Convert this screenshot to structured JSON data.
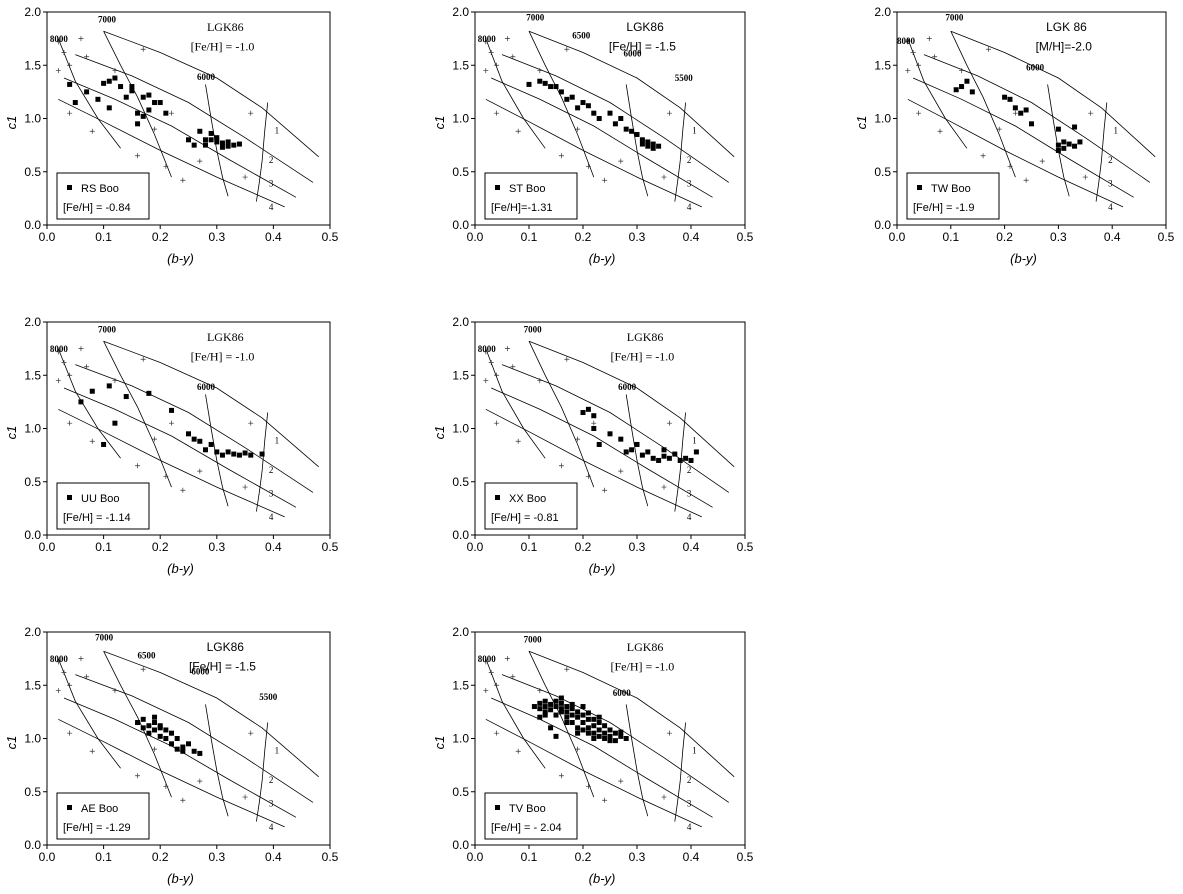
{
  "chart_data": [
    {
      "type": "scatter",
      "panel": "RS Boo",
      "xlabel": "(b-y)",
      "ylabel": "c1",
      "xlim": [
        0,
        0.5
      ],
      "ylim": [
        0,
        2
      ],
      "xticks": [
        "0.0",
        "0.1",
        "0.2",
        "0.3",
        "0.4",
        "0.5"
      ],
      "yticks": [
        "0.0",
        "0.5",
        "1.0",
        "1.5",
        "2.0"
      ],
      "grid": false,
      "model_label": "LGK86",
      "model_metal": "[Fe/H] = -1.0",
      "teff_labels": [
        {
          "text": "8000",
          "x": 0.005,
          "y": 1.72
        },
        {
          "text": "7000",
          "x": 0.09,
          "y": 1.9
        },
        {
          "text": "6000",
          "x": 0.265,
          "y": 1.36
        }
      ],
      "logg_labels": [
        "1",
        "2",
        "3",
        "4"
      ],
      "legend_name": "RS Boo",
      "legend_metal": "[Fe/H] = -0.84",
      "legend_placement": "bottom-left",
      "points": [
        [
          0.04,
          1.32
        ],
        [
          0.05,
          1.15
        ],
        [
          0.07,
          1.25
        ],
        [
          0.09,
          1.18
        ],
        [
          0.1,
          1.33
        ],
        [
          0.11,
          1.1
        ],
        [
          0.11,
          1.35
        ],
        [
          0.12,
          1.38
        ],
        [
          0.13,
          1.3
        ],
        [
          0.14,
          1.2
        ],
        [
          0.15,
          1.3
        ],
        [
          0.15,
          1.26
        ],
        [
          0.16,
          1.05
        ],
        [
          0.16,
          0.95
        ],
        [
          0.17,
          1.2
        ],
        [
          0.17,
          1.02
        ],
        [
          0.18,
          1.08
        ],
        [
          0.18,
          1.22
        ],
        [
          0.19,
          1.15
        ],
        [
          0.2,
          1.15
        ],
        [
          0.21,
          1.05
        ],
        [
          0.25,
          0.8
        ],
        [
          0.26,
          0.75
        ],
        [
          0.27,
          0.88
        ],
        [
          0.28,
          0.8
        ],
        [
          0.28,
          0.75
        ],
        [
          0.29,
          0.86
        ],
        [
          0.29,
          0.8
        ],
        [
          0.3,
          0.82
        ],
        [
          0.3,
          0.78
        ],
        [
          0.31,
          0.77
        ],
        [
          0.31,
          0.73
        ],
        [
          0.32,
          0.78
        ],
        [
          0.32,
          0.74
        ],
        [
          0.33,
          0.75
        ],
        [
          0.34,
          0.76
        ]
      ]
    },
    {
      "type": "scatter",
      "panel": "ST Boo",
      "xlabel": "(b-y)",
      "ylabel": "c1",
      "xlim": [
        0,
        0.5
      ],
      "ylim": [
        0,
        2
      ],
      "xticks": [
        "0.0",
        "0.1",
        "0.2",
        "0.3",
        "0.4",
        "0.5"
      ],
      "yticks": [
        "0.0",
        "0.5",
        "1.0",
        "1.5",
        "2.0"
      ],
      "grid": false,
      "model_label": "LGK86",
      "model_metal": "[Fe/H] = -1.5",
      "teff_labels": [
        {
          "text": "8000",
          "x": 0.005,
          "y": 1.72
        },
        {
          "text": "7000",
          "x": 0.095,
          "y": 1.92
        },
        {
          "text": "6500",
          "x": 0.18,
          "y": 1.75
        },
        {
          "text": "6000",
          "x": 0.275,
          "y": 1.58
        },
        {
          "text": "5500",
          "x": 0.37,
          "y": 1.35
        }
      ],
      "logg_labels": [
        "1",
        "2",
        "3",
        "4"
      ],
      "legend_name": "ST Boo",
      "legend_metal": "[Fe/H]=-1.31",
      "legend_placement": "bottom-left",
      "points": [
        [
          0.1,
          1.32
        ],
        [
          0.12,
          1.35
        ],
        [
          0.13,
          1.33
        ],
        [
          0.14,
          1.3
        ],
        [
          0.15,
          1.3
        ],
        [
          0.16,
          1.25
        ],
        [
          0.17,
          1.18
        ],
        [
          0.18,
          1.2
        ],
        [
          0.19,
          1.1
        ],
        [
          0.2,
          1.15
        ],
        [
          0.21,
          1.12
        ],
        [
          0.22,
          1.05
        ],
        [
          0.23,
          1.0
        ],
        [
          0.25,
          1.05
        ],
        [
          0.26,
          0.95
        ],
        [
          0.27,
          1.0
        ],
        [
          0.28,
          0.9
        ],
        [
          0.29,
          0.88
        ],
        [
          0.3,
          0.85
        ],
        [
          0.31,
          0.8
        ],
        [
          0.31,
          0.76
        ],
        [
          0.32,
          0.78
        ],
        [
          0.32,
          0.74
        ],
        [
          0.33,
          0.76
        ],
        [
          0.33,
          0.72
        ],
        [
          0.34,
          0.74
        ]
      ]
    },
    {
      "type": "scatter",
      "panel": "TW Boo",
      "xlabel": "(b-y)",
      "ylabel": "c1",
      "xlim": [
        0,
        0.5
      ],
      "ylim": [
        0,
        2
      ],
      "xticks": [
        "0.0",
        "0.1",
        "0.2",
        "0.3",
        "0.4",
        "0.5"
      ],
      "yticks": [
        "0.0",
        "0.5",
        "1.0",
        "1.5",
        "2.0"
      ],
      "grid": false,
      "model_label": "LGK 86",
      "model_metal": "[M/H]=-2.0",
      "teff_labels": [
        {
          "text": "8000",
          "x": 0.0,
          "y": 1.7
        },
        {
          "text": "7000",
          "x": 0.09,
          "y": 1.92
        },
        {
          "text": "6000",
          "x": 0.24,
          "y": 1.45
        }
      ],
      "logg_labels": [
        "1",
        "2",
        "3",
        "4"
      ],
      "legend_name": "TW Boo",
      "legend_metal": "[Fe/H] = -1.9",
      "legend_placement": "bottom-left",
      "points": [
        [
          0.11,
          1.27
        ],
        [
          0.12,
          1.3
        ],
        [
          0.13,
          1.35
        ],
        [
          0.14,
          1.25
        ],
        [
          0.2,
          1.2
        ],
        [
          0.21,
          1.18
        ],
        [
          0.22,
          1.1
        ],
        [
          0.23,
          1.05
        ],
        [
          0.24,
          1.08
        ],
        [
          0.25,
          0.95
        ],
        [
          0.3,
          0.75
        ],
        [
          0.3,
          0.7
        ],
        [
          0.31,
          0.78
        ],
        [
          0.31,
          0.72
        ],
        [
          0.32,
          0.76
        ],
        [
          0.33,
          0.74
        ],
        [
          0.34,
          0.78
        ],
        [
          0.3,
          0.9
        ],
        [
          0.33,
          0.92
        ]
      ]
    },
    {
      "type": "scatter",
      "panel": "UU Boo",
      "xlabel": "(b-y)",
      "ylabel": "c1",
      "xlim": [
        0,
        0.5
      ],
      "ylim": [
        0,
        2
      ],
      "xticks": [
        "0.0",
        "0.1",
        "0.2",
        "0.3",
        "0.4",
        "0.5"
      ],
      "yticks": [
        "0.0",
        "0.5",
        "1.0",
        "1.5",
        "2.0"
      ],
      "grid": false,
      "model_label": "LGK86",
      "model_metal": "[Fe/H] = -1.0",
      "teff_labels": [
        {
          "text": "8000",
          "x": 0.005,
          "y": 1.72
        },
        {
          "text": "7000",
          "x": 0.09,
          "y": 1.9
        },
        {
          "text": "6000",
          "x": 0.265,
          "y": 1.36
        }
      ],
      "logg_labels": [
        "1",
        "2",
        "3",
        "4"
      ],
      "legend_name": "UU Boo",
      "legend_metal": "[Fe/H] = -1.14",
      "legend_placement": "bottom-left",
      "points": [
        [
          0.06,
          1.25
        ],
        [
          0.08,
          1.35
        ],
        [
          0.1,
          0.85
        ],
        [
          0.11,
          1.4
        ],
        [
          0.12,
          1.05
        ],
        [
          0.14,
          1.3
        ],
        [
          0.18,
          1.33
        ],
        [
          0.22,
          1.17
        ],
        [
          0.25,
          0.95
        ],
        [
          0.26,
          0.9
        ],
        [
          0.27,
          0.88
        ],
        [
          0.28,
          0.8
        ],
        [
          0.29,
          0.85
        ],
        [
          0.3,
          0.78
        ],
        [
          0.31,
          0.75
        ],
        [
          0.32,
          0.78
        ],
        [
          0.33,
          0.76
        ],
        [
          0.34,
          0.75
        ],
        [
          0.35,
          0.77
        ],
        [
          0.36,
          0.75
        ],
        [
          0.38,
          0.76
        ]
      ]
    },
    {
      "type": "scatter",
      "panel": "XX Boo",
      "xlabel": "(b-y)",
      "ylabel": "c1",
      "xlim": [
        0,
        0.5
      ],
      "ylim": [
        0,
        2
      ],
      "xticks": [
        "0.0",
        "0.1",
        "0.2",
        "0.3",
        "0.4",
        "0.5"
      ],
      "yticks": [
        "0.0",
        "0.5",
        "1.0",
        "1.5",
        "2.0"
      ],
      "grid": false,
      "model_label": "LGK86",
      "model_metal": "[Fe/H] = -1.0",
      "teff_labels": [
        {
          "text": "8000",
          "x": 0.005,
          "y": 1.72
        },
        {
          "text": "7000",
          "x": 0.09,
          "y": 1.9
        },
        {
          "text": "6000",
          "x": 0.265,
          "y": 1.36
        }
      ],
      "logg_labels": [
        "1",
        "2",
        "3",
        "4"
      ],
      "legend_name": "XX Boo",
      "legend_metal": "[Fe/H] = -0.81",
      "legend_placement": "bottom-left",
      "points": [
        [
          0.2,
          1.15
        ],
        [
          0.21,
          1.18
        ],
        [
          0.22,
          1.0
        ],
        [
          0.22,
          1.12
        ],
        [
          0.23,
          0.85
        ],
        [
          0.25,
          0.95
        ],
        [
          0.27,
          0.9
        ],
        [
          0.28,
          0.78
        ],
        [
          0.29,
          0.8
        ],
        [
          0.3,
          0.85
        ],
        [
          0.31,
          0.75
        ],
        [
          0.32,
          0.78
        ],
        [
          0.33,
          0.72
        ],
        [
          0.34,
          0.7
        ],
        [
          0.35,
          0.74
        ],
        [
          0.36,
          0.72
        ],
        [
          0.37,
          0.76
        ],
        [
          0.38,
          0.7
        ],
        [
          0.39,
          0.72
        ],
        [
          0.4,
          0.7
        ],
        [
          0.41,
          0.78
        ],
        [
          0.35,
          0.8
        ]
      ]
    },
    {
      "type": "scatter",
      "panel": "AE Boo",
      "xlabel": "(b-y)",
      "ylabel": "c1",
      "xlim": [
        0,
        0.5
      ],
      "ylim": [
        0,
        2
      ],
      "xticks": [
        "0.0",
        "0.1",
        "0.2",
        "0.3",
        "0.4",
        "0.5"
      ],
      "yticks": [
        "0.0",
        "0.5",
        "1.0",
        "1.5",
        "2.0"
      ],
      "grid": false,
      "model_label": "LGK86",
      "model_metal": "[Fe/H] = -1.5",
      "teff_labels": [
        {
          "text": "8000",
          "x": 0.005,
          "y": 1.72
        },
        {
          "text": "7000",
          "x": 0.085,
          "y": 1.92
        },
        {
          "text": "6500",
          "x": 0.16,
          "y": 1.75
        },
        {
          "text": "6000",
          "x": 0.255,
          "y": 1.6
        },
        {
          "text": "5500",
          "x": 0.375,
          "y": 1.36
        }
      ],
      "logg_labels": [
        "1",
        "2",
        "3",
        "4"
      ],
      "legend_name": "AE Boo",
      "legend_metal": "[Fe/H] = -1.29",
      "legend_placement": "bottom-left",
      "points": [
        [
          0.16,
          1.15
        ],
        [
          0.17,
          1.1
        ],
        [
          0.17,
          1.18
        ],
        [
          0.18,
          1.12
        ],
        [
          0.18,
          1.05
        ],
        [
          0.19,
          1.08
        ],
        [
          0.19,
          1.15
        ],
        [
          0.2,
          1.1
        ],
        [
          0.2,
          1.02
        ],
        [
          0.21,
          1.0
        ],
        [
          0.21,
          1.08
        ],
        [
          0.22,
          0.95
        ],
        [
          0.22,
          1.05
        ],
        [
          0.23,
          0.9
        ],
        [
          0.23,
          1.0
        ],
        [
          0.24,
          0.92
        ],
        [
          0.24,
          0.88
        ],
        [
          0.25,
          0.95
        ],
        [
          0.26,
          0.88
        ],
        [
          0.27,
          0.86
        ],
        [
          0.19,
          1.2
        ],
        [
          0.2,
          1.12
        ]
      ]
    },
    {
      "type": "scatter",
      "panel": "TV Boo",
      "xlabel": "(b-y)",
      "ylabel": "c1",
      "xlim": [
        0,
        0.5
      ],
      "ylim": [
        0,
        2
      ],
      "xticks": [
        "0.0",
        "0.1",
        "0.2",
        "0.3",
        "0.4",
        "0.5"
      ],
      "yticks": [
        "0.0",
        "0.5",
        "1.0",
        "1.5",
        "2.0"
      ],
      "grid": false,
      "model_label": "LGK86",
      "model_metal": "[Fe/H] = -1.0",
      "teff_labels": [
        {
          "text": "8000",
          "x": 0.005,
          "y": 1.72
        },
        {
          "text": "7000",
          "x": 0.09,
          "y": 1.9
        },
        {
          "text": "6000",
          "x": 0.255,
          "y": 1.4
        }
      ],
      "logg_labels": [
        "1",
        "2",
        "3",
        "4"
      ],
      "legend_name": "TV Boo",
      "legend_metal": "[Fe/H] = - 2.04",
      "legend_placement": "bottom-left",
      "points": [
        [
          0.11,
          1.3
        ],
        [
          0.12,
          1.28
        ],
        [
          0.12,
          1.33
        ],
        [
          0.13,
          1.25
        ],
        [
          0.13,
          1.3
        ],
        [
          0.13,
          1.35
        ],
        [
          0.14,
          1.27
        ],
        [
          0.14,
          1.32
        ],
        [
          0.15,
          1.3
        ],
        [
          0.15,
          1.22
        ],
        [
          0.15,
          1.35
        ],
        [
          0.16,
          1.28
        ],
        [
          0.16,
          1.25
        ],
        [
          0.16,
          1.33
        ],
        [
          0.17,
          1.3
        ],
        [
          0.17,
          1.2
        ],
        [
          0.17,
          1.25
        ],
        [
          0.18,
          1.28
        ],
        [
          0.18,
          1.15
        ],
        [
          0.18,
          1.22
        ],
        [
          0.19,
          1.2
        ],
        [
          0.19,
          1.1
        ],
        [
          0.19,
          1.25
        ],
        [
          0.2,
          1.15
        ],
        [
          0.2,
          1.08
        ],
        [
          0.2,
          1.22
        ],
        [
          0.21,
          1.1
        ],
        [
          0.21,
          1.18
        ],
        [
          0.21,
          1.05
        ],
        [
          0.22,
          1.12
        ],
        [
          0.22,
          1.05
        ],
        [
          0.22,
          1.0
        ],
        [
          0.23,
          1.08
        ],
        [
          0.23,
          1.02
        ],
        [
          0.23,
          1.15
        ],
        [
          0.24,
          1.05
        ],
        [
          0.24,
          1.0
        ],
        [
          0.25,
          1.08
        ],
        [
          0.25,
          1.02
        ],
        [
          0.26,
          1.05
        ],
        [
          0.26,
          0.98
        ],
        [
          0.27,
          1.02
        ],
        [
          0.27,
          1.06
        ],
        [
          0.28,
          1.0
        ],
        [
          0.14,
          1.1
        ],
        [
          0.16,
          1.38
        ],
        [
          0.15,
          1.02
        ],
        [
          0.24,
          1.12
        ],
        [
          0.21,
          1.24
        ],
        [
          0.12,
          1.2
        ],
        [
          0.18,
          1.32
        ],
        [
          0.2,
          1.3
        ],
        [
          0.23,
          1.2
        ],
        [
          0.17,
          1.15
        ],
        [
          0.25,
          0.98
        ],
        [
          0.19,
          1.05
        ],
        [
          0.13,
          1.22
        ],
        [
          0.22,
          1.18
        ]
      ]
    }
  ]
}
